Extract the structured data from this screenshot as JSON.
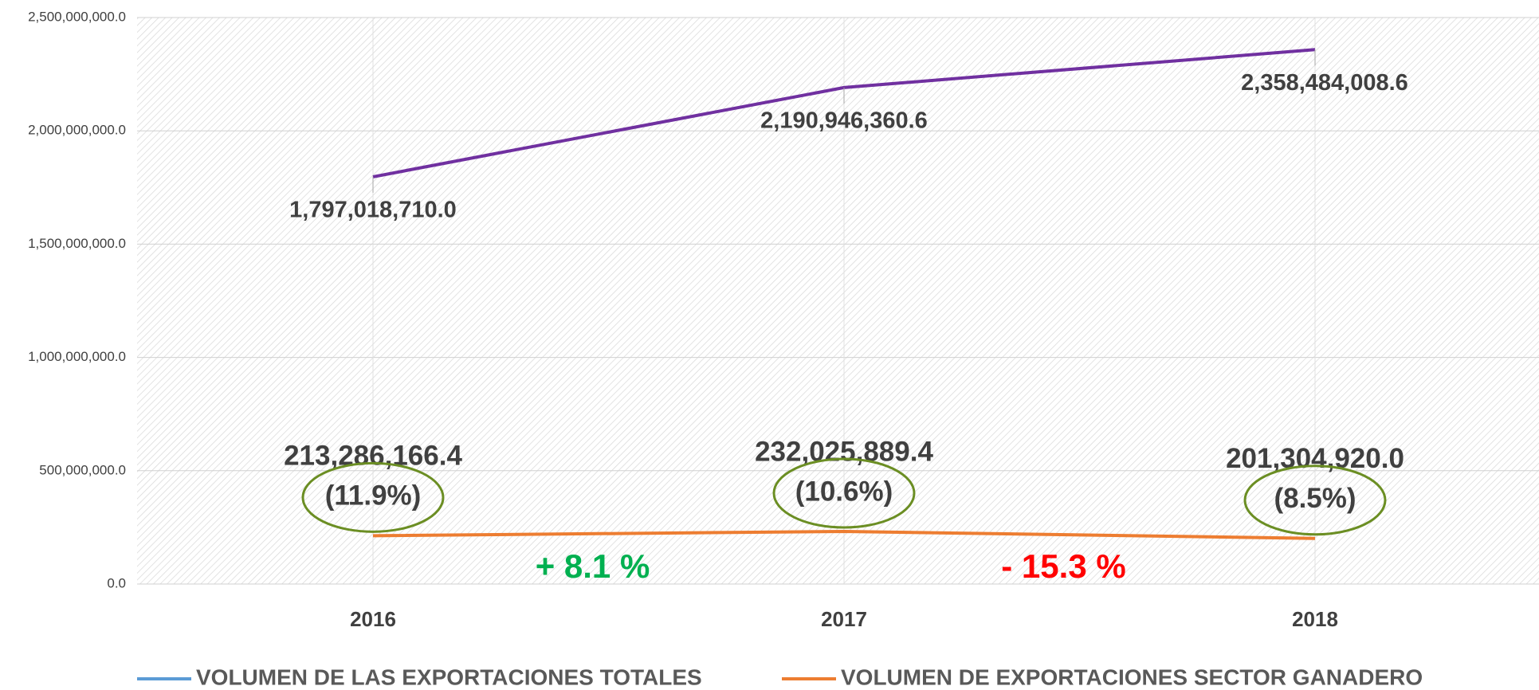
{
  "chart_data": {
    "type": "line",
    "categories": [
      "2016",
      "2017",
      "2018"
    ],
    "series": [
      {
        "name": "VOLUMEN DE LAS EXPORTACIONES TOTALES",
        "color": "#7030a0",
        "legend_color": "#5b9bd5",
        "values": [
          1797018710.0,
          2190946360.6,
          2358484008.6
        ],
        "value_labels": [
          "1,797,018,710.0",
          "2,190,946,360.6",
          "2,358,484,008.6"
        ]
      },
      {
        "name": "VOLUMEN DE EXPORTACIONES SECTOR GANADERO",
        "color": "#ed7d31",
        "legend_color": "#ed7d31",
        "values": [
          213286166.4,
          232025889.4,
          201304920.0
        ],
        "value_labels": [
          "213,286,166.4",
          "232,025,889.4",
          "201,304,920.0"
        ],
        "shares": [
          11.9,
          10.6,
          8.5
        ],
        "share_labels": [
          "(11.9%)",
          "(10.6%)",
          "(8.5%)"
        ]
      }
    ],
    "annotations": [
      {
        "text": "+ 8.1 %",
        "color": "#00b050"
      },
      {
        "text": "- 15.3 %",
        "color": "#ff0000"
      }
    ],
    "ylim": [
      0,
      2500000000
    ],
    "yticks": [
      {
        "value": 0,
        "label": "0.0"
      },
      {
        "value": 500000000,
        "label": "500,000,000.0"
      },
      {
        "value": 1000000000,
        "label": "1,000,000,000.0"
      },
      {
        "value": 1500000000,
        "label": "1,500,000,000.0"
      },
      {
        "value": 2000000000,
        "label": "2,000,000,000.0"
      },
      {
        "value": 2500000000,
        "label": "2,500,000,000.0"
      }
    ],
    "grid": true
  }
}
